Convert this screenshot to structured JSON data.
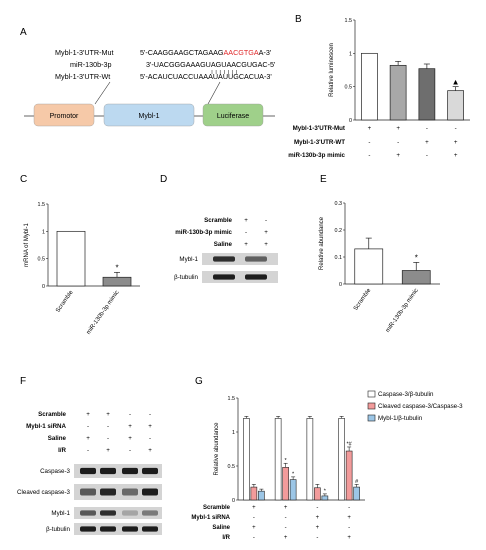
{
  "panels": {
    "A": {
      "letter": "A",
      "seq_labels": [
        "Mybl-1-3'UTR-Mut",
        "miR-130b-3p",
        "Mybl-1-3'UTR-Wt"
      ],
      "mut_seq_prefix": "5'-CAAGGAAGCTAGAAG",
      "mut_seq_highlight": "AACGTGA",
      "mut_seq_suffix": "A-3'",
      "mir_seq": "3'-UACGGGAAAGUAGUAACGUGAC-5'",
      "wt_seq": "5'-ACAUCUACCUAAAUAUUGCACUA-3'",
      "boxes": [
        "Promotor",
        "Mybl-1",
        "Luciferase"
      ],
      "colors": {
        "promotor": "#f6c9a8",
        "mybl": "#bcd9f0",
        "luciferase": "#9fd08a",
        "highlight": "#e0282a"
      }
    },
    "B": {
      "letter": "B",
      "row_labels": [
        "Mybl-1-3'UTR-Mut",
        "Mybl-1-3'UTR-WT",
        "miR-130b-3p mimic"
      ],
      "row_signs": [
        [
          "+",
          "+",
          "-",
          "-"
        ],
        [
          "-",
          "-",
          "+",
          "+"
        ],
        [
          "-",
          "+",
          "-",
          "+"
        ]
      ],
      "marker": "▲"
    },
    "C": {
      "letter": "C",
      "sig": "*"
    },
    "D": {
      "letter": "D",
      "row_labels": [
        "Scramble",
        "miR-130b-3p mimic",
        "Saline"
      ],
      "row_signs": [
        [
          "+",
          "-"
        ],
        [
          "-",
          "+"
        ],
        [
          "+",
          "+"
        ]
      ],
      "blot_labels": [
        "Mybl-1",
        "β-tubulin"
      ]
    },
    "E": {
      "letter": "E",
      "sig": "*"
    },
    "F": {
      "letter": "F",
      "row_labels": [
        "Scramble",
        "Mybl-1 siRNA",
        "Saline",
        "I/R"
      ],
      "row_signs": [
        [
          "+",
          "+",
          "-",
          "-"
        ],
        [
          "-",
          "-",
          "+",
          "+"
        ],
        [
          "+",
          "-",
          "+",
          "-"
        ],
        [
          "-",
          "+",
          "-",
          "+"
        ]
      ],
      "blot_labels": [
        "Caspase-3",
        "Cleaved caspase-3",
        "Mybl-1",
        "β-tubulin"
      ]
    },
    "G": {
      "letter": "G",
      "row_labels": [
        "Scramble",
        "Mybl-1 siRNA",
        "Saline",
        "I/R"
      ],
      "row_signs": [
        [
          "+",
          "+",
          "-",
          "-"
        ],
        [
          "-",
          "-",
          "+",
          "+"
        ],
        [
          "+",
          "-",
          "+",
          "-"
        ],
        [
          "-",
          "+",
          "-",
          "+"
        ]
      ]
    }
  },
  "chart_data": [
    {
      "panel": "B",
      "type": "bar",
      "ylabel": "Relative luminescen",
      "ylim": [
        0,
        1.5
      ],
      "yticks": [
        0,
        0.5,
        1.0,
        1.5
      ],
      "values": [
        1.0,
        0.82,
        0.77,
        0.44
      ],
      "errors": [
        0,
        0.06,
        0.07,
        0.06
      ],
      "colors": [
        "#ffffff",
        "#a8a8a8",
        "#6e6e6e",
        "#d9d9d9"
      ]
    },
    {
      "panel": "C",
      "type": "bar",
      "ylabel": "mRNA of Mybl-1",
      "ylim": [
        0,
        1.5
      ],
      "yticks": [
        0.0,
        0.5,
        1.0,
        1.5
      ],
      "categories": [
        "Scramble",
        "miR-130b-3p mimic"
      ],
      "values": [
        1.0,
        0.16
      ],
      "errors": [
        0,
        0.09
      ],
      "colors": [
        "#ffffff",
        "#8c8c8c"
      ]
    },
    {
      "panel": "E",
      "type": "bar",
      "ylabel": "Relative abundance",
      "ylim": [
        0,
        0.3
      ],
      "yticks": [
        0.0,
        0.1,
        0.2,
        0.3
      ],
      "categories": [
        "Scramble",
        "miR-130b-3p mimic"
      ],
      "values": [
        0.13,
        0.05
      ],
      "errors": [
        0.04,
        0.03
      ],
      "colors": [
        "#ffffff",
        "#8c8c8c"
      ]
    },
    {
      "panel": "G",
      "type": "bar",
      "ylabel": "Relative abundance",
      "ylim": [
        0,
        1.5
      ],
      "yticks": [
        0.0,
        0.5,
        1.0,
        1.5
      ],
      "series": [
        {
          "name": "Caspase-3/β-tubulin",
          "values": [
            1.2,
            1.2,
            1.2,
            1.2
          ],
          "errors": [
            0.03,
            0.03,
            0.03,
            0.03
          ],
          "color": "#ffffff",
          "marks": [
            "",
            "",
            "",
            ""
          ]
        },
        {
          "name": "Cleaved caspase-3/Caspase-3",
          "values": [
            0.19,
            0.48,
            0.18,
            0.72
          ],
          "errors": [
            0.04,
            0.06,
            0.05,
            0.06
          ],
          "color": "#f29b9b",
          "marks": [
            "",
            "*",
            "",
            "*#"
          ]
        },
        {
          "name": "Mybl-1/β-tubulin",
          "values": [
            0.13,
            0.3,
            0.06,
            0.19
          ],
          "errors": [
            0.03,
            0.04,
            0.03,
            0.04
          ],
          "color": "#9cc6e6",
          "marks": [
            "",
            "*",
            "*",
            "#"
          ]
        }
      ]
    }
  ]
}
